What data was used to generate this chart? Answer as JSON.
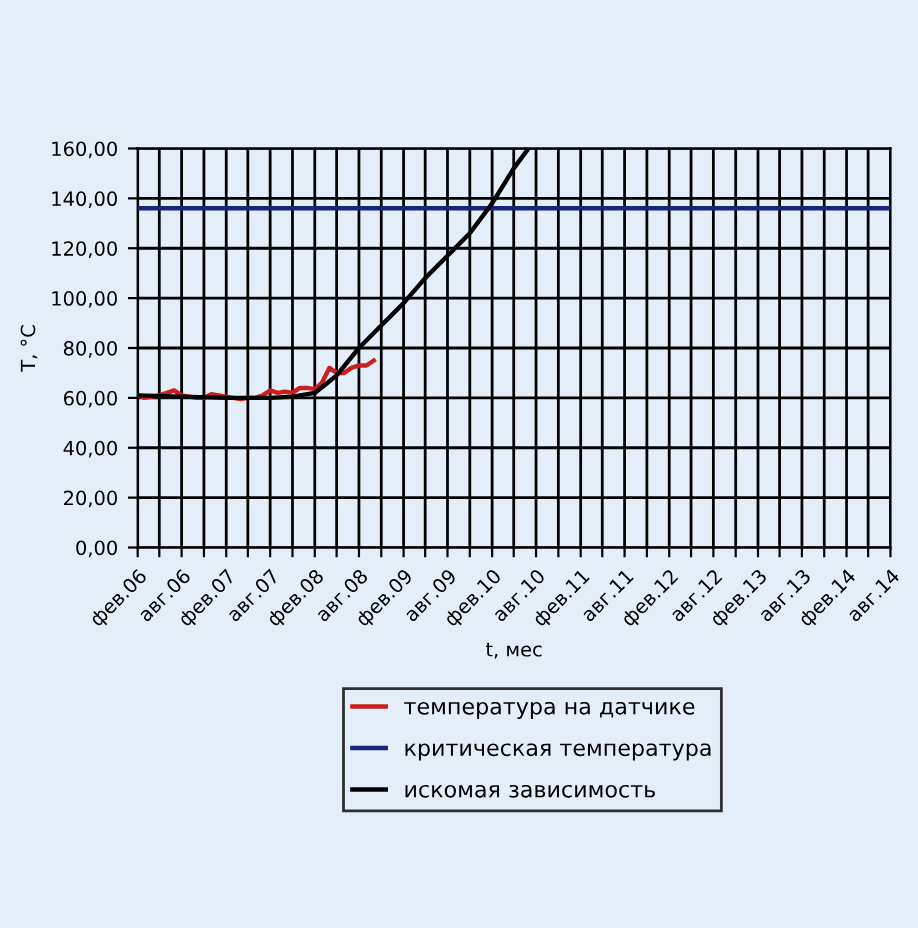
{
  "chart_data": {
    "type": "line",
    "xlabel": "t, мес",
    "ylabel": "T, °C",
    "xlim": [
      "2006-02",
      "2014-08"
    ],
    "ylim": [
      0,
      160
    ],
    "yticks": [
      {
        "value": 0,
        "label": "0,00"
      },
      {
        "value": 20,
        "label": "20,00"
      },
      {
        "value": 40,
        "label": "40,00"
      },
      {
        "value": 60,
        "label": "60,00"
      },
      {
        "value": 80,
        "label": "80,00"
      },
      {
        "value": 100,
        "label": "100,00"
      },
      {
        "value": 120,
        "label": "120,00"
      },
      {
        "value": 140,
        "label": "140,00"
      },
      {
        "value": 160,
        "label": "160,00"
      }
    ],
    "xticks": [
      {
        "value": "2006-02",
        "label": "фев.06"
      },
      {
        "value": "2006-05",
        "label": null
      },
      {
        "value": "2006-08",
        "label": "авг.06"
      },
      {
        "value": "2006-11",
        "label": null
      },
      {
        "value": "2007-02",
        "label": "фев.07"
      },
      {
        "value": "2007-05",
        "label": null
      },
      {
        "value": "2007-08",
        "label": "авг.07"
      },
      {
        "value": "2007-11",
        "label": null
      },
      {
        "value": "2008-02",
        "label": "фев.08"
      },
      {
        "value": "2008-05",
        "label": null
      },
      {
        "value": "2008-08",
        "label": "авг.08"
      },
      {
        "value": "2008-11",
        "label": null
      },
      {
        "value": "2009-02",
        "label": "фев.09"
      },
      {
        "value": "2009-05",
        "label": null
      },
      {
        "value": "2009-08",
        "label": "авг.09"
      },
      {
        "value": "2009-11",
        "label": null
      },
      {
        "value": "2010-02",
        "label": "фев.10"
      },
      {
        "value": "2010-05",
        "label": null
      },
      {
        "value": "2010-08",
        "label": "авг.10"
      },
      {
        "value": "2010-11",
        "label": null
      },
      {
        "value": "2011-02",
        "label": "фев.11"
      },
      {
        "value": "2011-05",
        "label": null
      },
      {
        "value": "2011-08",
        "label": "авг.11"
      },
      {
        "value": "2011-11",
        "label": null
      },
      {
        "value": "2012-02",
        "label": "фев.12"
      },
      {
        "value": "2012-05",
        "label": null
      },
      {
        "value": "2012-08",
        "label": "авг.12"
      },
      {
        "value": "2012-11",
        "label": null
      },
      {
        "value": "2013-02",
        "label": "фев.13"
      },
      {
        "value": "2013-05",
        "label": null
      },
      {
        "value": "2013-08",
        "label": "авг.13"
      },
      {
        "value": "2013-11",
        "label": null
      },
      {
        "value": "2014-02",
        "label": "фев.14"
      },
      {
        "value": "2014-05",
        "label": null
      },
      {
        "value": "2014-08",
        "label": "авг.14"
      }
    ],
    "grid": true,
    "legend": "bottom",
    "marker": "none",
    "line_style": "solid",
    "series": [
      {
        "name": "температура на датчике",
        "color": "#cc1f1f",
        "x": [
          "2006-02",
          "2006-03",
          "2006-04",
          "2006-05",
          "2006-06",
          "2006-07",
          "2006-08",
          "2006-09",
          "2006-10",
          "2006-11",
          "2006-12",
          "2007-01",
          "2007-02",
          "2007-03",
          "2007-04",
          "2007-05",
          "2007-06",
          "2007-07",
          "2007-08",
          "2007-09",
          "2007-10",
          "2007-11",
          "2007-12",
          "2008-01",
          "2008-02",
          "2008-03",
          "2008-04",
          "2008-05",
          "2008-06",
          "2008-07",
          "2008-08",
          "2008-09",
          "2008-10"
        ],
        "values": [
          61,
          60,
          60.5,
          61,
          62,
          63,
          61,
          60.5,
          60,
          60,
          61.5,
          61,
          60.5,
          60,
          59.5,
          60,
          60,
          61,
          63,
          62,
          62.5,
          62,
          64,
          64,
          63.5,
          66,
          72,
          70,
          70,
          72,
          73,
          73,
          75
        ]
      },
      {
        "name": "критическая температура",
        "color": "#1a237e",
        "x": [
          "2006-02",
          "2014-08"
        ],
        "values": [
          136,
          136
        ]
      },
      {
        "name": "искомая зависимость",
        "color": "#000000",
        "x": [
          "2006-02",
          "2006-08",
          "2007-02",
          "2007-08",
          "2007-11",
          "2008-02",
          "2008-05",
          "2008-08",
          "2008-11",
          "2009-02",
          "2009-05",
          "2009-08",
          "2009-11",
          "2010-02",
          "2010-05",
          "2010-07"
        ],
        "values": [
          61,
          60.5,
          60,
          60,
          60.5,
          62,
          69,
          80,
          89,
          98,
          108,
          117,
          126,
          138,
          152,
          160
        ]
      }
    ]
  }
}
